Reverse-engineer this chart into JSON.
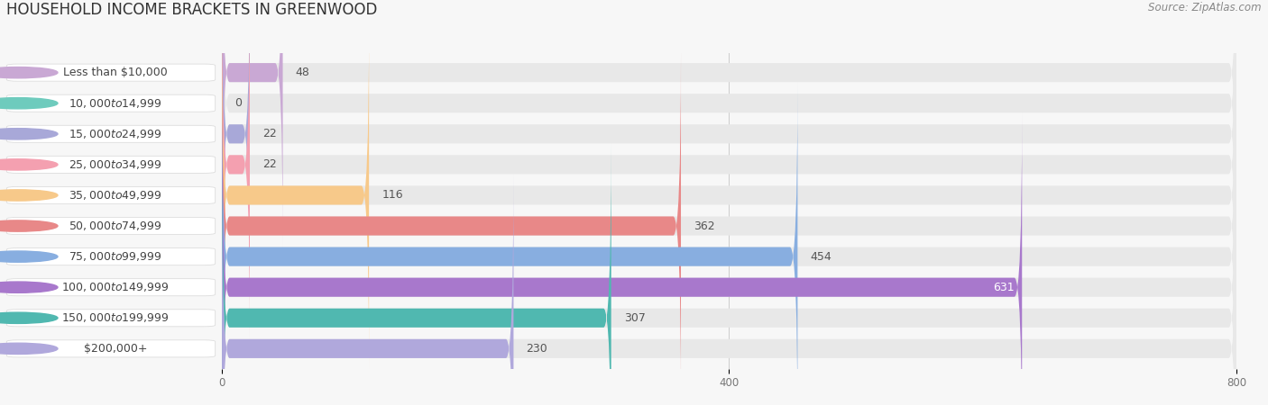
{
  "title": "HOUSEHOLD INCOME BRACKETS IN GREENWOOD",
  "source": "Source: ZipAtlas.com",
  "categories": [
    "Less than $10,000",
    "$10,000 to $14,999",
    "$15,000 to $24,999",
    "$25,000 to $34,999",
    "$35,000 to $49,999",
    "$50,000 to $74,999",
    "$75,000 to $99,999",
    "$100,000 to $149,999",
    "$150,000 to $199,999",
    "$200,000+"
  ],
  "values": [
    48,
    0,
    22,
    22,
    116,
    362,
    454,
    631,
    307,
    230
  ],
  "bar_colors": [
    "#c9a8d4",
    "#6ecbbd",
    "#a8a8d8",
    "#f4a0b0",
    "#f7c98a",
    "#e88888",
    "#88aee0",
    "#a878cc",
    "#50b8b0",
    "#b0a8dc"
  ],
  "xlim": [
    0,
    800
  ],
  "xticks": [
    0,
    400,
    800
  ],
  "background_color": "#f7f7f7",
  "bar_bg_color": "#e8e8e8",
  "title_fontsize": 12,
  "source_fontsize": 8.5,
  "label_fontsize": 9,
  "value_fontsize": 9,
  "value_inside_color": "#ffffff",
  "value_inside_indices": [
    7
  ]
}
